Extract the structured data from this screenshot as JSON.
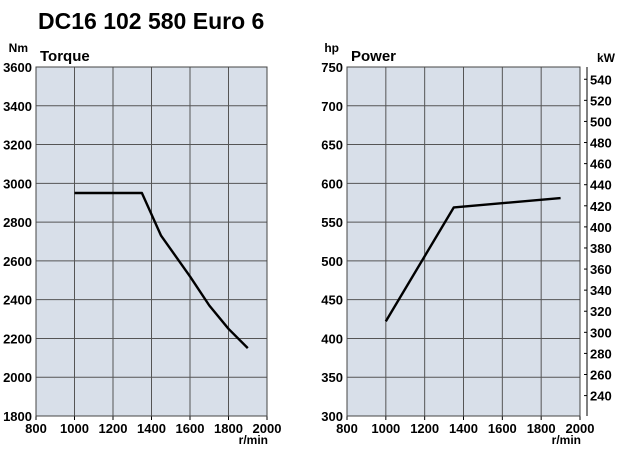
{
  "title": "DC16 102 580 Euro 6",
  "chart_data": [
    {
      "type": "line",
      "title": "Torque",
      "ylabel": "Nm",
      "xlabel": "r/min",
      "xlim": [
        800,
        2000
      ],
      "ylim": [
        1800,
        3600
      ],
      "x_ticks": [
        800,
        1000,
        1200,
        1400,
        1600,
        1800,
        2000
      ],
      "y_ticks": [
        1800,
        2000,
        2200,
        2400,
        2600,
        2800,
        3000,
        3200,
        3400,
        3600
      ],
      "grid": true,
      "series": [
        {
          "x": [
            1000,
            1350,
            1450,
            1600,
            1700,
            1800,
            1900
          ],
          "y": [
            2950,
            2950,
            2730,
            2520,
            2370,
            2250,
            2150
          ]
        }
      ]
    },
    {
      "type": "line",
      "title": "Power",
      "ylabel": "hp",
      "y2label": "kW",
      "xlabel": "r/min",
      "xlim": [
        800,
        2000
      ],
      "ylim": [
        300,
        750
      ],
      "x_ticks": [
        800,
        1000,
        1200,
        1400,
        1600,
        1800,
        2000
      ],
      "y_ticks": [
        300,
        350,
        400,
        450,
        500,
        550,
        600,
        650,
        700,
        750
      ],
      "y2_ticks": [
        240,
        260,
        280,
        300,
        320,
        340,
        360,
        380,
        400,
        420,
        440,
        460,
        480,
        500,
        520,
        540
      ],
      "grid": true,
      "series": [
        {
          "x": [
            1000,
            1350,
            1900
          ],
          "y": [
            422,
            569,
            581
          ]
        }
      ]
    }
  ]
}
